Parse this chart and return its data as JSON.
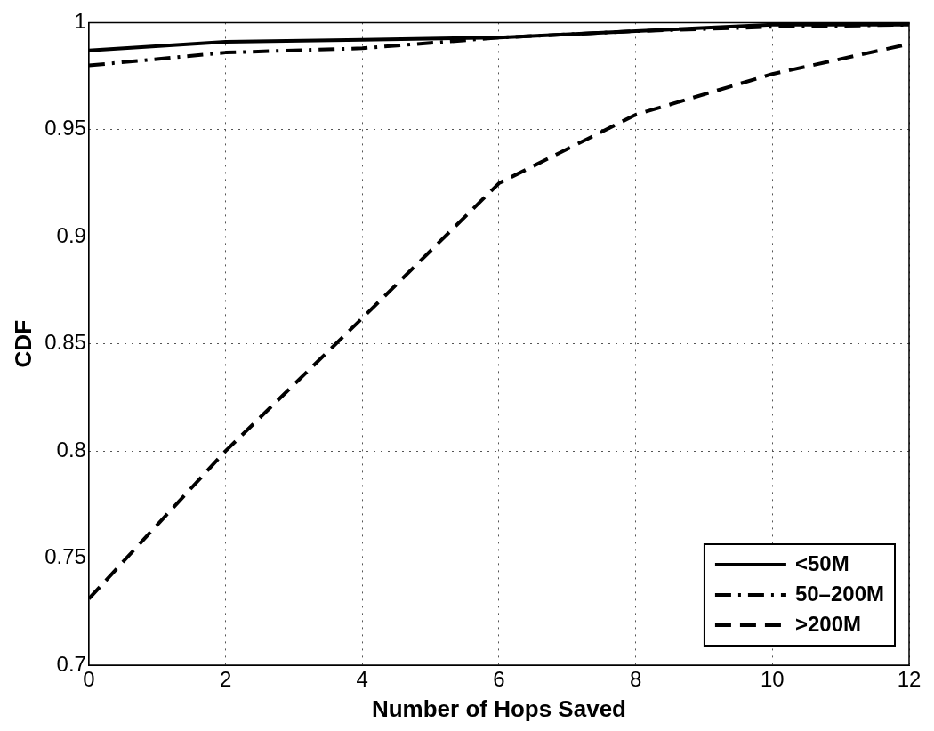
{
  "chart_data": {
    "type": "line",
    "xlabel": "Number of Hops Saved",
    "ylabel": "CDF",
    "x": [
      0,
      2,
      4,
      6,
      8,
      10,
      12
    ],
    "series": [
      {
        "name": "<50M",
        "color": "#000000",
        "line_style": "solid",
        "values": [
          0.987,
          0.991,
          0.992,
          0.993,
          0.996,
          0.999,
          0.999
        ]
      },
      {
        "name": "50–200M",
        "color": "#000000",
        "line_style": "dashdot",
        "values": [
          0.98,
          0.986,
          0.988,
          0.993,
          0.996,
          0.998,
          0.999
        ]
      },
      {
        "name": ">200M",
        "color": "#000000",
        "line_style": "dashed",
        "values": [
          0.731,
          0.8,
          0.862,
          0.925,
          0.957,
          0.976,
          0.99
        ]
      }
    ],
    "xlim": [
      0,
      12
    ],
    "xticks": [
      0,
      2,
      4,
      6,
      8,
      10,
      12
    ],
    "ylim": [
      0.7,
      1
    ],
    "yticks": [
      0.7,
      0.75,
      0.8,
      0.85,
      0.9,
      0.95,
      1
    ],
    "grid": true,
    "legend": "bottom right",
    "marker": "none"
  }
}
